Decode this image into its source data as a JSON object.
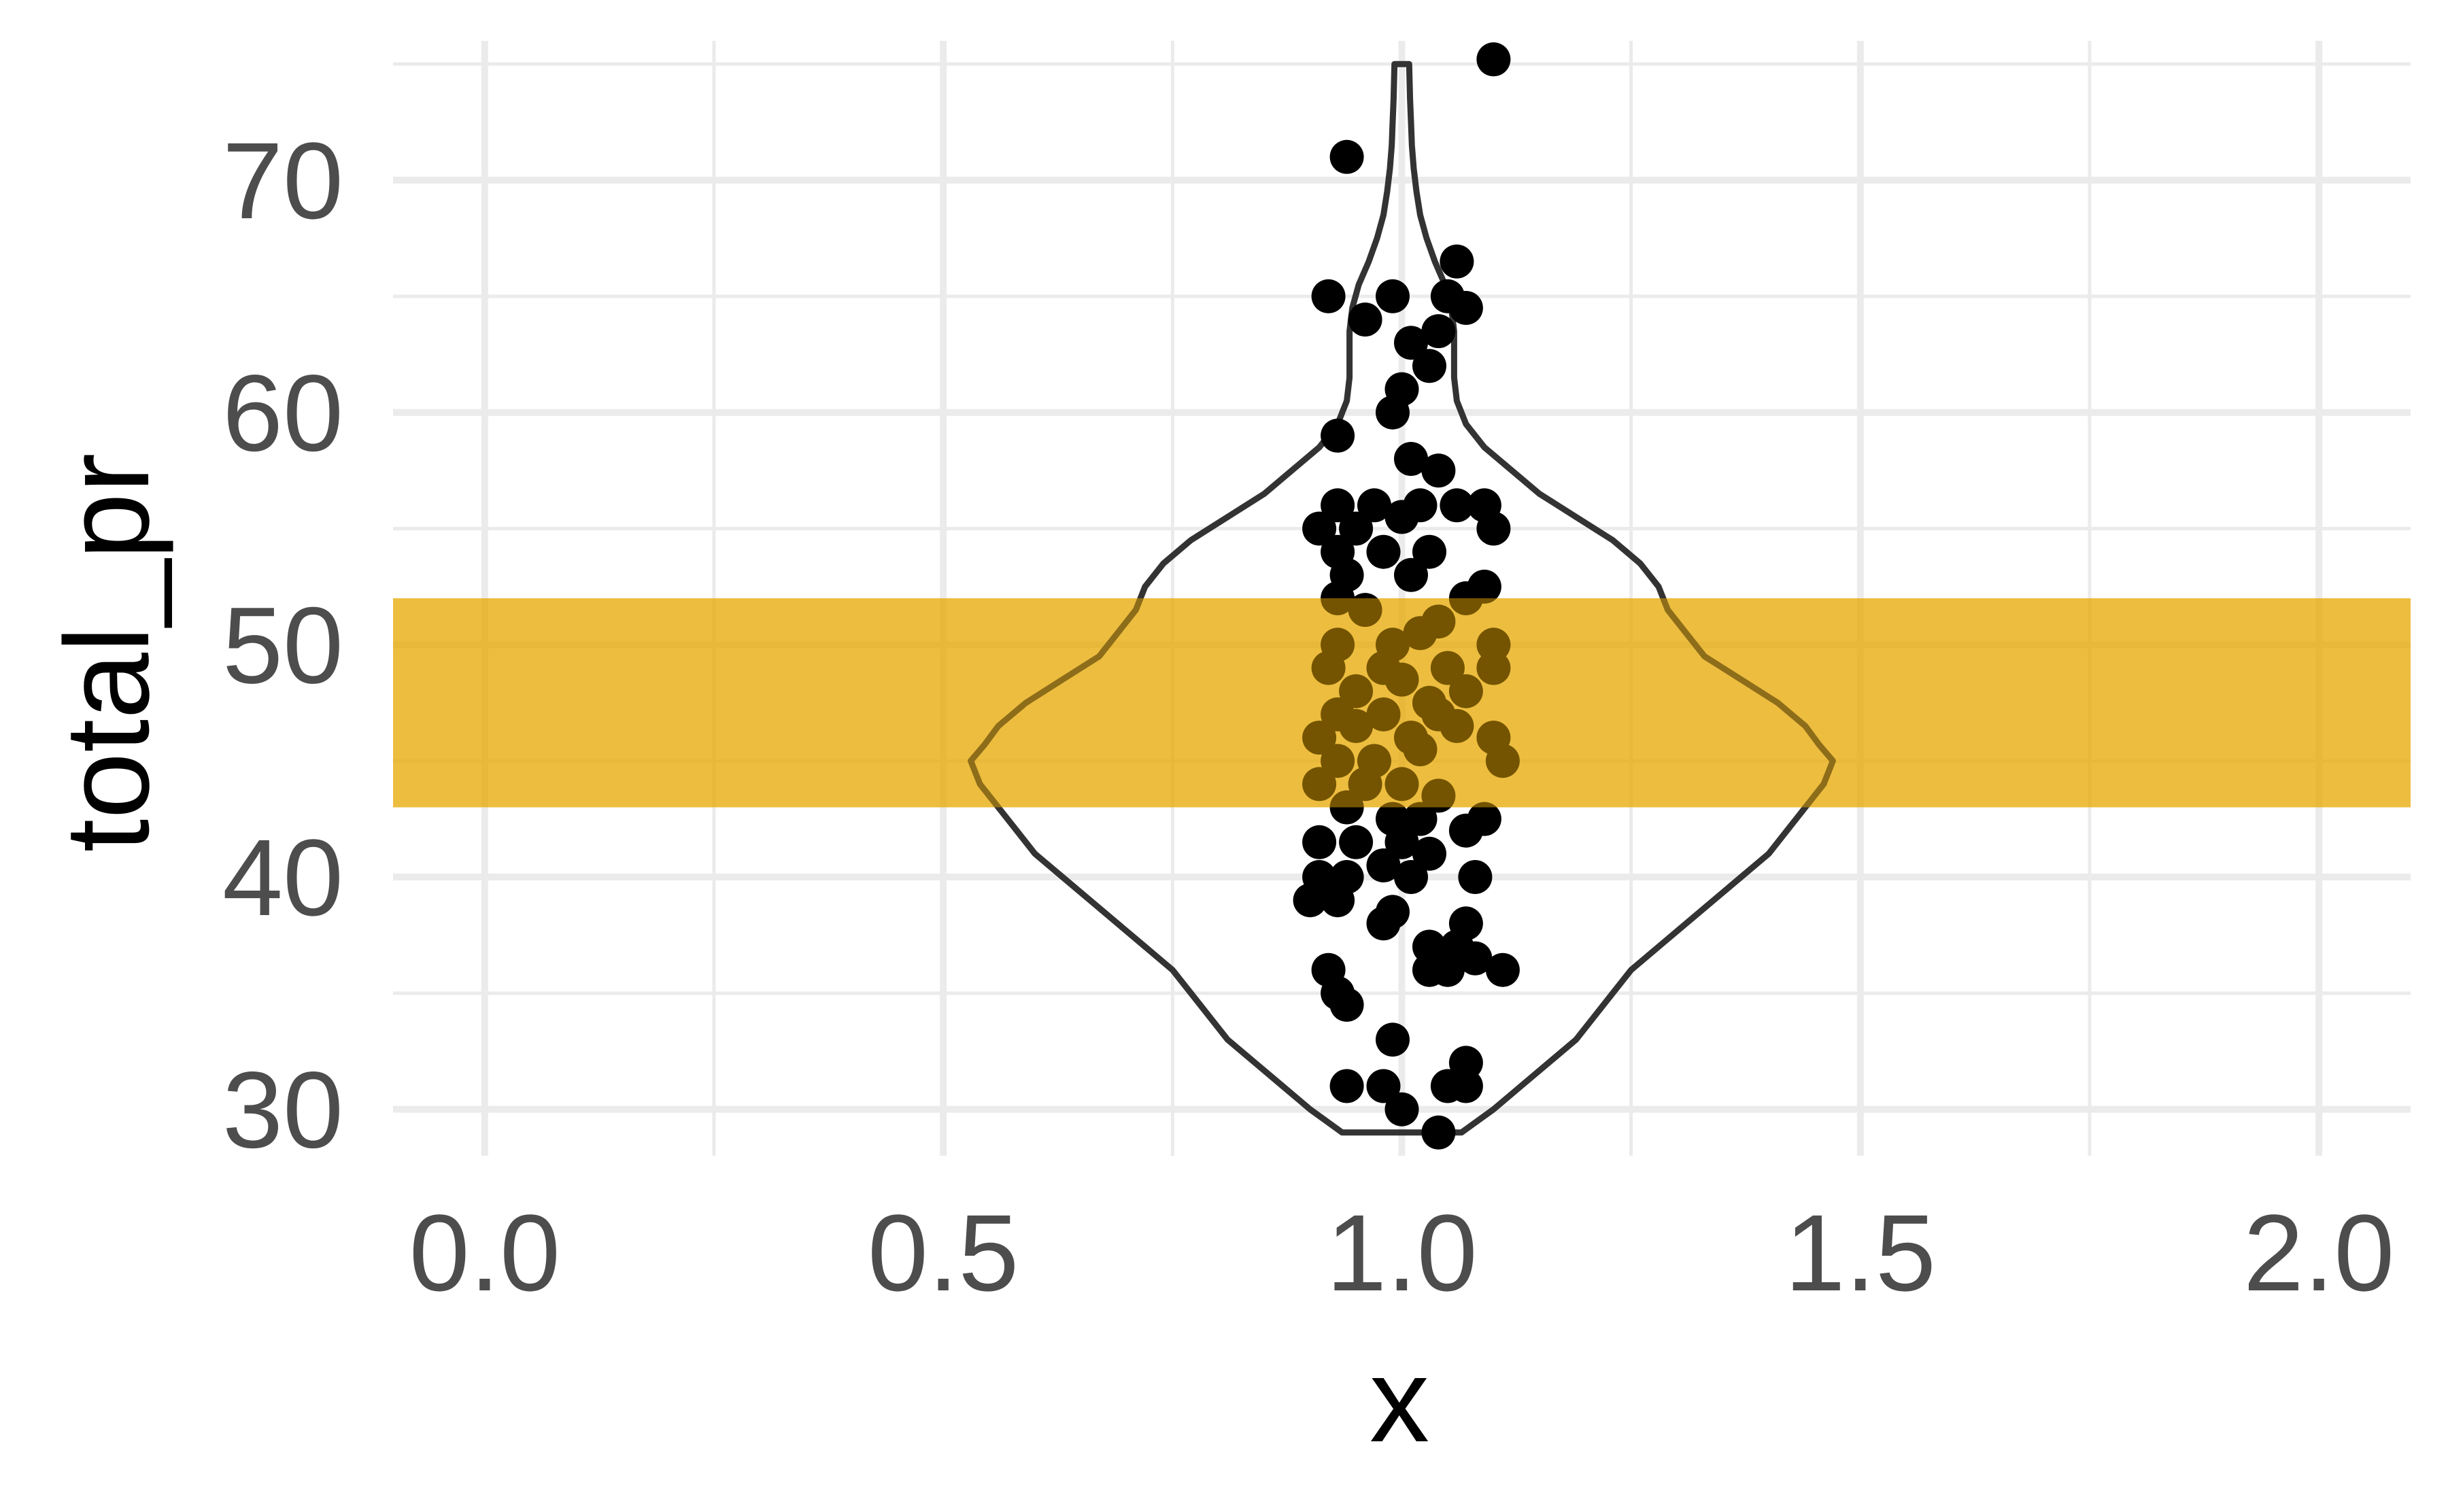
{
  "chart_data": {
    "type": "scatter",
    "title": "",
    "xlabel": "x",
    "ylabel": "total_pr",
    "xlim": [
      -0.1,
      2.1
    ],
    "ylim": [
      28,
      76
    ],
    "x_ticks": [
      0.0,
      0.5,
      1.0,
      1.5,
      2.0
    ],
    "x_tick_labels": [
      "0.0",
      "0.5",
      "1.0",
      "1.5",
      "2.0"
    ],
    "y_ticks": [
      30,
      40,
      50,
      60,
      70
    ],
    "y_tick_labels": [
      "30",
      "40",
      "50",
      "60",
      "70"
    ],
    "grid": true,
    "highlight_band": {
      "y_min": 43.0,
      "y_max": 52.0,
      "color": "#E8A700",
      "opacity": 0.5
    },
    "violin": {
      "center_x": 1.0,
      "max_half_width": 0.45,
      "profile": [
        [
          29.0,
          0.065
        ],
        [
          30.0,
          0.1
        ],
        [
          31.0,
          0.13
        ],
        [
          32.0,
          0.16
        ],
        [
          33.0,
          0.19
        ],
        [
          34.0,
          0.21
        ],
        [
          35.0,
          0.23
        ],
        [
          36.0,
          0.25
        ],
        [
          37.0,
          0.28
        ],
        [
          38.0,
          0.31
        ],
        [
          39.0,
          0.34
        ],
        [
          40.0,
          0.37
        ],
        [
          41.0,
          0.4
        ],
        [
          42.0,
          0.42
        ],
        [
          43.0,
          0.44
        ],
        [
          44.0,
          0.46
        ],
        [
          45.0,
          0.47
        ],
        [
          45.7,
          0.455
        ],
        [
          46.5,
          0.44
        ],
        [
          47.5,
          0.41
        ],
        [
          48.5,
          0.37
        ],
        [
          49.5,
          0.33
        ],
        [
          50.5,
          0.31
        ],
        [
          51.5,
          0.29
        ],
        [
          52.5,
          0.28
        ],
        [
          53.5,
          0.26
        ],
        [
          54.5,
          0.23
        ],
        [
          55.5,
          0.19
        ],
        [
          56.5,
          0.15
        ],
        [
          57.5,
          0.12
        ],
        [
          58.5,
          0.09
        ],
        [
          59.5,
          0.07
        ],
        [
          60.5,
          0.06
        ],
        [
          61.5,
          0.057
        ],
        [
          62.5,
          0.057
        ],
        [
          63.5,
          0.057
        ],
        [
          64.5,
          0.054
        ],
        [
          65.5,
          0.047
        ],
        [
          66.5,
          0.036
        ],
        [
          67.5,
          0.027
        ],
        [
          68.5,
          0.02
        ],
        [
          69.5,
          0.016
        ],
        [
          70.5,
          0.013
        ],
        [
          71.5,
          0.011
        ],
        [
          72.5,
          0.01
        ],
        [
          73.5,
          0.009
        ],
        [
          75.0,
          0.008
        ]
      ]
    },
    "series": [
      {
        "points": [
          [
            1.1,
            75.2
          ],
          [
            0.94,
            71.0
          ],
          [
            0.92,
            65.0
          ],
          [
            0.99,
            65.0
          ],
          [
            0.96,
            64.0
          ],
          [
            1.06,
            66.5
          ],
          [
            1.05,
            65.0
          ],
          [
            1.07,
            64.5
          ],
          [
            1.04,
            63.5
          ],
          [
            1.01,
            63.0
          ],
          [
            1.03,
            62.0
          ],
          [
            1.0,
            61.0
          ],
          [
            0.99,
            60.0
          ],
          [
            0.93,
            59.0
          ],
          [
            1.01,
            58.0
          ],
          [
            1.04,
            57.5
          ],
          [
            0.93,
            56.0
          ],
          [
            0.97,
            56.0
          ],
          [
            1.02,
            56.0
          ],
          [
            1.06,
            56.0
          ],
          [
            1.09,
            56.0
          ],
          [
            0.91,
            55.0
          ],
          [
            0.95,
            55.0
          ],
          [
            1.0,
            55.5
          ],
          [
            1.1,
            55.0
          ],
          [
            0.93,
            54.0
          ],
          [
            0.98,
            54.0
          ],
          [
            1.03,
            54.0
          ],
          [
            0.94,
            53.0
          ],
          [
            1.01,
            53.0
          ],
          [
            1.09,
            52.5
          ],
          [
            0.93,
            52.0
          ],
          [
            0.96,
            51.5
          ],
          [
            1.07,
            52.0
          ],
          [
            1.04,
            51.0
          ],
          [
            0.93,
            50.0
          ],
          [
            0.99,
            50.0
          ],
          [
            1.02,
            50.5
          ],
          [
            1.1,
            50.0
          ],
          [
            0.92,
            49.0
          ],
          [
            0.98,
            49.0
          ],
          [
            1.05,
            49.0
          ],
          [
            1.1,
            49.0
          ],
          [
            0.95,
            48.0
          ],
          [
            1.0,
            48.5
          ],
          [
            1.03,
            47.5
          ],
          [
            1.07,
            48.0
          ],
          [
            0.93,
            47.0
          ],
          [
            0.98,
            47.0
          ],
          [
            1.04,
            47.0
          ],
          [
            0.91,
            46.0
          ],
          [
            0.95,
            46.5
          ],
          [
            1.01,
            46.0
          ],
          [
            1.06,
            46.5
          ],
          [
            1.1,
            46.0
          ],
          [
            0.93,
            45.0
          ],
          [
            0.97,
            45.0
          ],
          [
            1.02,
            45.5
          ],
          [
            1.11,
            45.0
          ],
          [
            0.91,
            44.0
          ],
          [
            0.96,
            44.0
          ],
          [
            1.0,
            44.0
          ],
          [
            1.04,
            43.5
          ],
          [
            0.94,
            43.0
          ],
          [
            0.99,
            42.5
          ],
          [
            1.02,
            42.5
          ],
          [
            1.09,
            42.5
          ],
          [
            0.91,
            41.5
          ],
          [
            0.95,
            41.5
          ],
          [
            1.0,
            41.5
          ],
          [
            1.03,
            41.0
          ],
          [
            1.07,
            42.0
          ],
          [
            0.91,
            40.0
          ],
          [
            0.94,
            40.0
          ],
          [
            0.98,
            40.5
          ],
          [
            1.01,
            40.0
          ],
          [
            1.08,
            40.0
          ],
          [
            0.9,
            39.0
          ],
          [
            0.93,
            39.0
          ],
          [
            0.99,
            38.5
          ],
          [
            0.98,
            38.0
          ],
          [
            1.07,
            38.0
          ],
          [
            1.03,
            37.0
          ],
          [
            1.06,
            37.0
          ],
          [
            1.03,
            36.0
          ],
          [
            1.05,
            36.0
          ],
          [
            1.08,
            36.5
          ],
          [
            0.92,
            36.0
          ],
          [
            1.11,
            36.0
          ],
          [
            0.93,
            35.0
          ],
          [
            0.94,
            34.5
          ],
          [
            0.99,
            33.0
          ],
          [
            1.07,
            32.0
          ],
          [
            0.94,
            31.0
          ],
          [
            0.98,
            31.0
          ],
          [
            1.05,
            31.0
          ],
          [
            1.07,
            31.0
          ],
          [
            1.0,
            30.0
          ],
          [
            1.04,
            29.0
          ]
        ]
      }
    ]
  }
}
